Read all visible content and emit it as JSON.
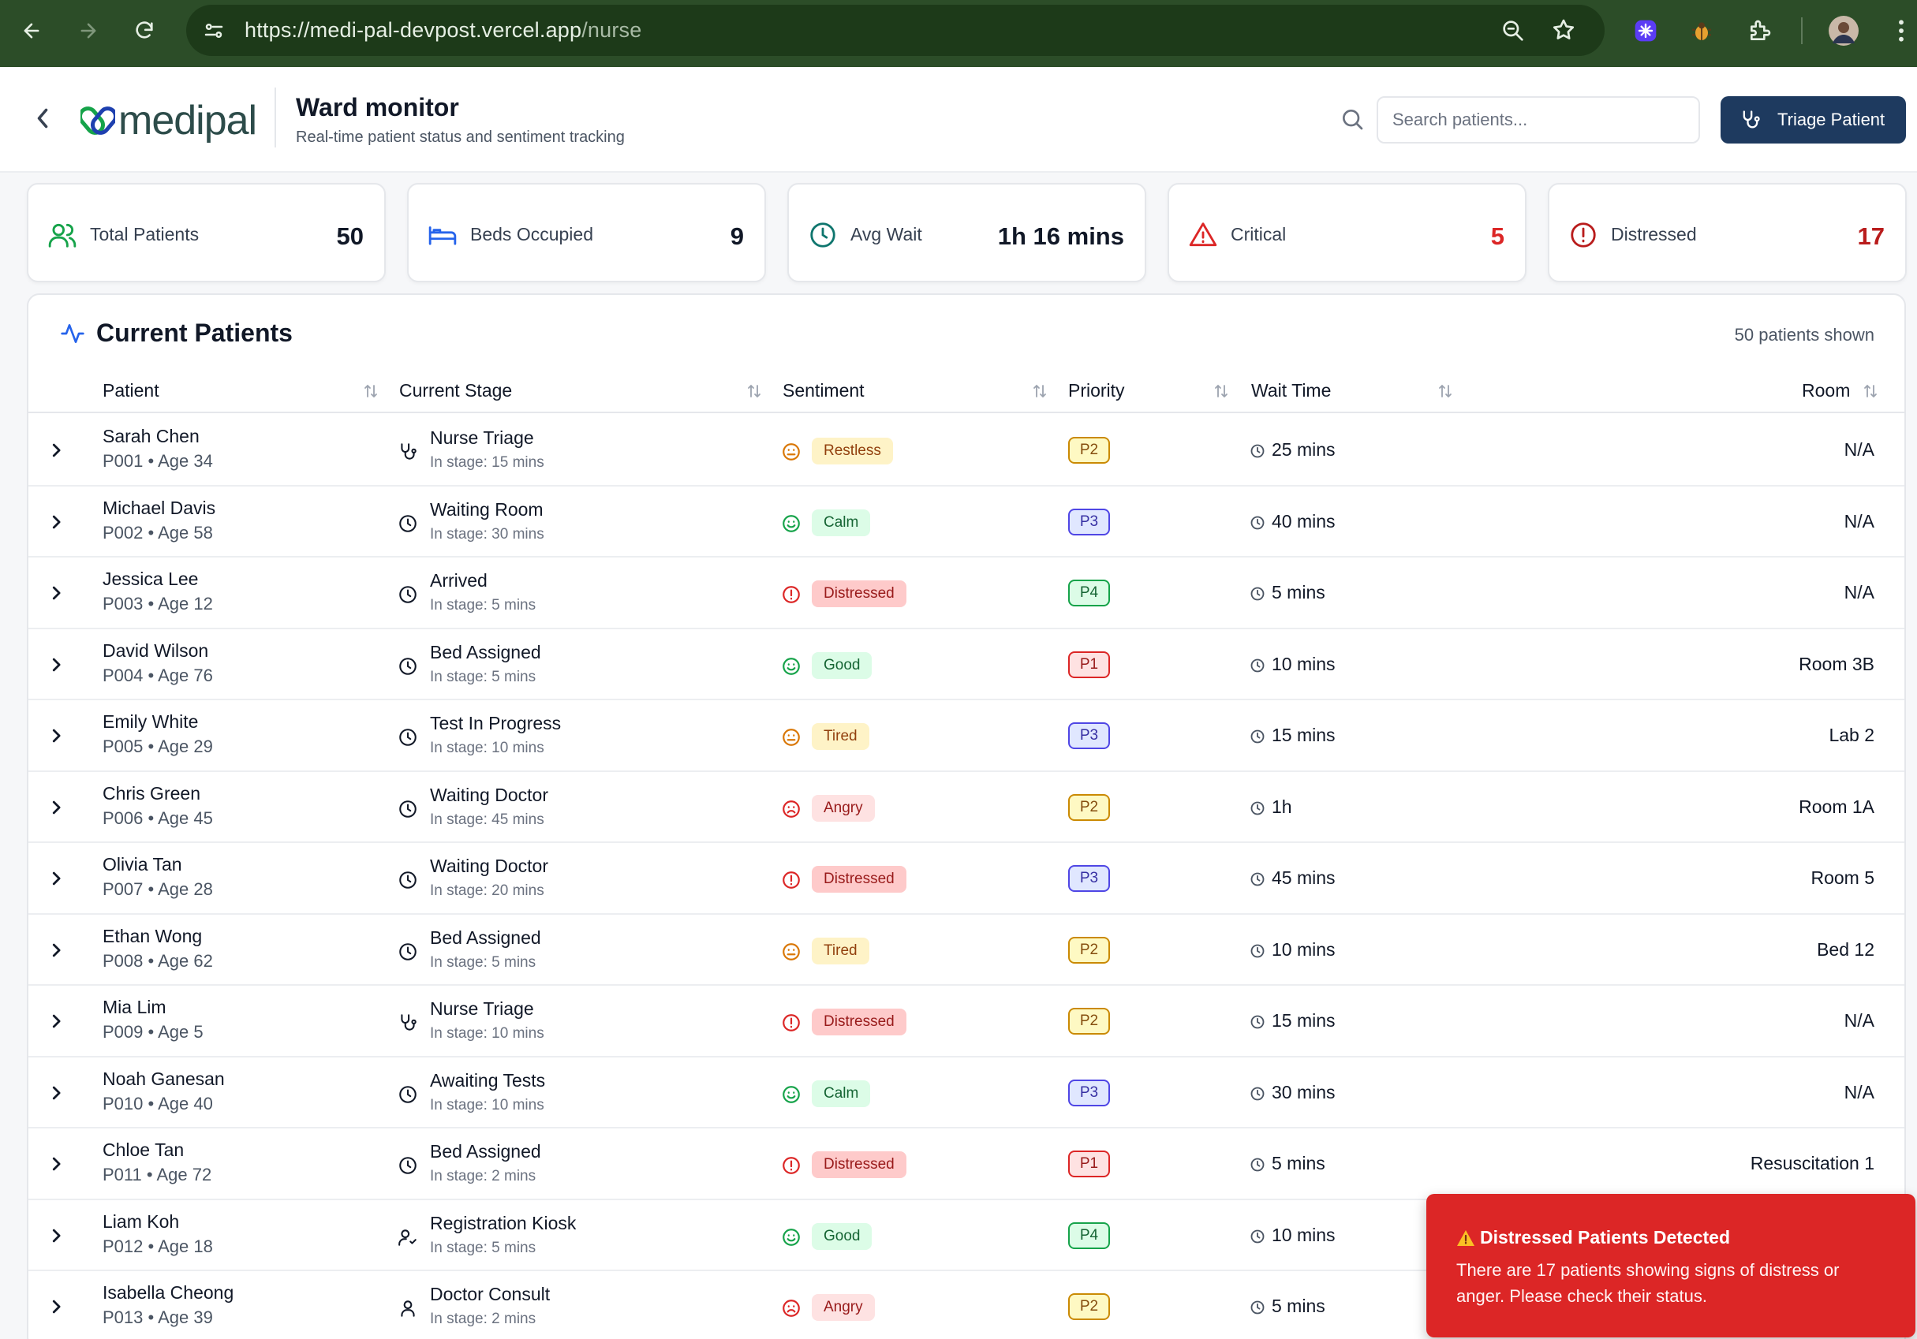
{
  "browser": {
    "url_host": "https://medi-pal-devpost.vercel.app",
    "url_path": "/nurse"
  },
  "header": {
    "logo_text": "medipal",
    "title": "Ward monitor",
    "subtitle": "Real-time patient status and sentiment tracking",
    "search_placeholder": "Search patients...",
    "triage_label": "Triage Patient"
  },
  "stats": [
    {
      "label": "Total Patients",
      "value": "50",
      "icon": "users-icon"
    },
    {
      "label": "Beds Occupied",
      "value": "9",
      "icon": "bed-icon"
    },
    {
      "label": "Avg Wait",
      "value": "1h 16 mins",
      "icon": "clock-icon"
    },
    {
      "label": "Critical",
      "value": "5",
      "icon": "alert-triangle-icon",
      "color": "#dc2626"
    },
    {
      "label": "Distressed",
      "value": "17",
      "icon": "alert-circle-icon",
      "color": "#b91c1c"
    }
  ],
  "panel": {
    "title": "Current Patients",
    "count_text": "50 patients shown",
    "columns": [
      "Patient",
      "Current Stage",
      "Sentiment",
      "Priority",
      "Wait Time",
      "Room"
    ]
  },
  "patients": [
    {
      "name": "Sarah Chen",
      "meta": "P001 • Age 34",
      "stage": "Nurse Triage",
      "stage_time": "In stage: 15 mins",
      "stage_icon": "stethoscope-icon",
      "sentiment": "Restless",
      "sentiment_kind": "neutral",
      "priority": "P2",
      "wait": "25 mins",
      "room": "N/A"
    },
    {
      "name": "Michael Davis",
      "meta": "P002 • Age 58",
      "stage": "Waiting Room",
      "stage_time": "In stage: 30 mins",
      "stage_icon": "clock-icon",
      "sentiment": "Calm",
      "sentiment_kind": "happy",
      "priority": "P3",
      "wait": "40 mins",
      "room": "N/A"
    },
    {
      "name": "Jessica Lee",
      "meta": "P003 • Age 12",
      "stage": "Arrived",
      "stage_time": "In stage: 5 mins",
      "stage_icon": "clock-icon",
      "sentiment": "Distressed",
      "sentiment_kind": "distressed",
      "priority": "P4",
      "wait": "5 mins",
      "room": "N/A"
    },
    {
      "name": "David Wilson",
      "meta": "P004 • Age 76",
      "stage": "Bed Assigned",
      "stage_time": "In stage: 5 mins",
      "stage_icon": "clock-icon",
      "sentiment": "Good",
      "sentiment_kind": "happy",
      "priority": "P1",
      "wait": "10 mins",
      "room": "Room 3B"
    },
    {
      "name": "Emily White",
      "meta": "P005 • Age 29",
      "stage": "Test In Progress",
      "stage_time": "In stage: 10 mins",
      "stage_icon": "clock-icon",
      "sentiment": "Tired",
      "sentiment_kind": "neutral",
      "priority": "P3",
      "wait": "15 mins",
      "room": "Lab 2"
    },
    {
      "name": "Chris Green",
      "meta": "P006 • Age 45",
      "stage": "Waiting Doctor",
      "stage_time": "In stage: 45 mins",
      "stage_icon": "clock-icon",
      "sentiment": "Angry",
      "sentiment_kind": "angry",
      "priority": "P2",
      "wait": "1h",
      "room": "Room 1A"
    },
    {
      "name": "Olivia Tan",
      "meta": "P007 • Age 28",
      "stage": "Waiting Doctor",
      "stage_time": "In stage: 20 mins",
      "stage_icon": "clock-icon",
      "sentiment": "Distressed",
      "sentiment_kind": "distressed",
      "priority": "P3",
      "wait": "45 mins",
      "room": "Room 5"
    },
    {
      "name": "Ethan Wong",
      "meta": "P008 • Age 62",
      "stage": "Bed Assigned",
      "stage_time": "In stage: 5 mins",
      "stage_icon": "clock-icon",
      "sentiment": "Tired",
      "sentiment_kind": "neutral",
      "priority": "P2",
      "wait": "10 mins",
      "room": "Bed 12"
    },
    {
      "name": "Mia Lim",
      "meta": "P009 • Age 5",
      "stage": "Nurse Triage",
      "stage_time": "In stage: 10 mins",
      "stage_icon": "stethoscope-icon",
      "sentiment": "Distressed",
      "sentiment_kind": "distressed",
      "priority": "P2",
      "wait": "15 mins",
      "room": "N/A"
    },
    {
      "name": "Noah Ganesan",
      "meta": "P010 • Age 40",
      "stage": "Awaiting Tests",
      "stage_time": "In stage: 10 mins",
      "stage_icon": "clock-icon",
      "sentiment": "Calm",
      "sentiment_kind": "happy",
      "priority": "P3",
      "wait": "30 mins",
      "room": "N/A"
    },
    {
      "name": "Chloe Tan",
      "meta": "P011 • Age 72",
      "stage": "Bed Assigned",
      "stage_time": "In stage: 2 mins",
      "stage_icon": "clock-icon",
      "sentiment": "Distressed",
      "sentiment_kind": "distressed",
      "priority": "P1",
      "wait": "5 mins",
      "room": "Resuscitation 1"
    },
    {
      "name": "Liam Koh",
      "meta": "P012 • Age 18",
      "stage": "Registration Kiosk",
      "stage_time": "In stage: 5 mins",
      "stage_icon": "user-check-icon",
      "sentiment": "Good",
      "sentiment_kind": "happy",
      "priority": "P4",
      "wait": "10 mins",
      "room": ""
    },
    {
      "name": "Isabella Cheong",
      "meta": "P013 • Age 39",
      "stage": "Doctor Consult",
      "stage_time": "In stage: 2 mins",
      "stage_icon": "user-icon",
      "sentiment": "Angry",
      "sentiment_kind": "angry",
      "priority": "P2",
      "wait": "5 mins",
      "room": ""
    }
  ],
  "toast": {
    "title": "Distressed Patients Detected",
    "message": "There are 17 patients showing signs of distress or anger. Please check their status."
  }
}
